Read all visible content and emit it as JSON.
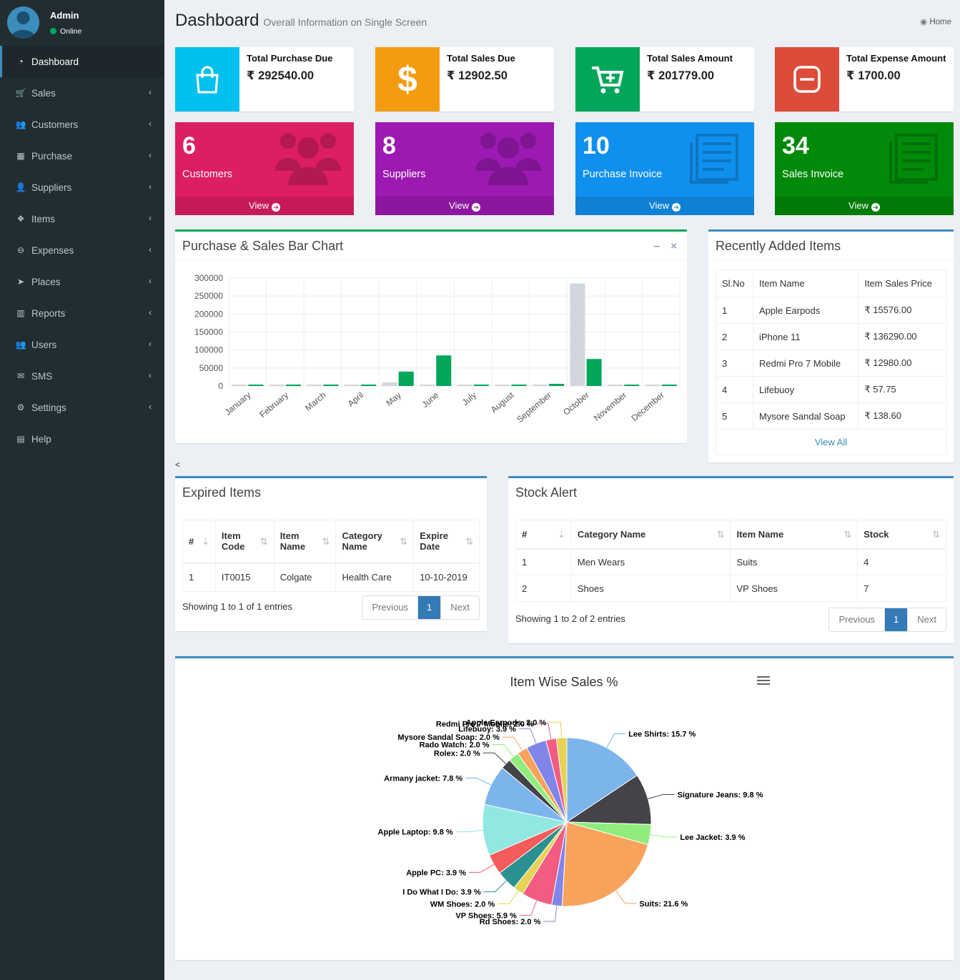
{
  "user": {
    "name": "Admin",
    "status": "Online"
  },
  "sidebar": {
    "items": [
      {
        "label": "Dashboard",
        "icon": "dashboard-icon"
      },
      {
        "label": "Sales",
        "icon": "cart-icon"
      },
      {
        "label": "Customers",
        "icon": "users-icon"
      },
      {
        "label": "Purchase",
        "icon": "grid-icon"
      },
      {
        "label": "Suppliers",
        "icon": "user-plus-icon"
      },
      {
        "label": "Items",
        "icon": "cubes-icon"
      },
      {
        "label": "Expenses",
        "icon": "minus-circle-icon"
      },
      {
        "label": "Places",
        "icon": "paper-plane-icon"
      },
      {
        "label": "Reports",
        "icon": "bar-chart-icon"
      },
      {
        "label": "Users",
        "icon": "users-icon"
      },
      {
        "label": "SMS",
        "icon": "envelope-icon"
      },
      {
        "label": "Settings",
        "icon": "cogs-icon"
      },
      {
        "label": "Help",
        "icon": "book-icon"
      }
    ]
  },
  "header": {
    "title": "Dashboard",
    "subtitle": "Overall Information on Single Screen",
    "home": "Home"
  },
  "info_boxes": [
    {
      "label": "Total Purchase Due",
      "value": "₹ 292540.00",
      "color": "#00c0ef",
      "icon": "shopping-bag-icon"
    },
    {
      "label": "Total Sales Due",
      "value": "₹ 12902.50",
      "color": "#f39c12",
      "icon": "dollar-icon"
    },
    {
      "label": "Total Sales Amount",
      "value": "₹ 201779.00",
      "color": "#00a65a",
      "icon": "cart-plus-icon"
    },
    {
      "label": "Total Expense Amount",
      "value": "₹ 1700.00",
      "color": "#dd4b39",
      "icon": "minus-square-icon"
    }
  ],
  "small_boxes": [
    {
      "count": "6",
      "label": "Customers",
      "link": "View",
      "color": "#dd1e63"
    },
    {
      "count": "8",
      "label": "Suppliers",
      "link": "View",
      "color": "#9c1ab1"
    },
    {
      "count": "10",
      "label": "Purchase Invoice",
      "link": "View",
      "color": "#1090ee"
    },
    {
      "count": "34",
      "label": "Sales Invoice",
      "link": "View",
      "color": "#018a0a"
    }
  ],
  "bar_chart_box": {
    "title": "Purchase & Sales Bar Chart",
    "stray": "<"
  },
  "chart_data": [
    {
      "type": "bar",
      "categories": [
        "January",
        "February",
        "March",
        "April",
        "May",
        "June",
        "July",
        "August",
        "September",
        "October",
        "November",
        "December"
      ],
      "series": [
        {
          "values": [
            0,
            0,
            0,
            0,
            10000,
            0,
            0,
            0,
            0,
            285000,
            0,
            0
          ],
          "color": "#d2d6de"
        },
        {
          "values": [
            0,
            0,
            0,
            0,
            40000,
            85000,
            0,
            0,
            6000,
            75000,
            0,
            0
          ],
          "color": "#00a65a"
        }
      ],
      "yticks": [
        0,
        50000,
        100000,
        150000,
        200000,
        250000,
        300000
      ],
      "ylim": [
        0,
        300000
      ],
      "grid": true
    },
    {
      "type": "pie",
      "title": "Item Wise Sales %",
      "slices": [
        {
          "label": "Lee Shirts",
          "value": 15.7,
          "color": "#7cb5ec"
        },
        {
          "label": "Signature Jeans",
          "value": 9.8,
          "color": "#434348"
        },
        {
          "label": "Lee Jacket",
          "value": 3.9,
          "color": "#90ed7d"
        },
        {
          "label": "Suits",
          "value": 21.6,
          "color": "#f7a35c"
        },
        {
          "label": "Rd Shoes",
          "value": 2.0,
          "color": "#8085e9"
        },
        {
          "label": "VP Shoes",
          "value": 5.9,
          "color": "#f15c80"
        },
        {
          "label": "WM Shoes",
          "value": 2.0,
          "color": "#e4d354"
        },
        {
          "label": "I Do What I Do",
          "value": 3.9,
          "color": "#2b908f"
        },
        {
          "label": "Apple PC",
          "value": 3.9,
          "color": "#f45b5b"
        },
        {
          "label": "Apple Laptop",
          "value": 9.8,
          "color": "#91e8e1"
        },
        {
          "label": "Armany jacket",
          "value": 7.8,
          "color": "#7cb5ec"
        },
        {
          "label": "Rolex",
          "value": 2.0,
          "color": "#434348"
        },
        {
          "label": "Rado Watch",
          "value": 2.0,
          "color": "#90ed7d"
        },
        {
          "label": "Mysore Sandal Soap",
          "value": 2.0,
          "color": "#f7a35c"
        },
        {
          "label": "Lifebuoy",
          "value": 3.9,
          "color": "#8085e9"
        },
        {
          "label": "Redmi Pro 7 Mobile",
          "value": 2.0,
          "color": "#f15c80"
        },
        {
          "label": "Apple Earpods",
          "value": 2.0,
          "color": "#e4d354"
        }
      ]
    }
  ],
  "recent_items": {
    "title": "Recently Added Items",
    "headers": [
      "Sl.No",
      "Item Name",
      "Item Sales Price"
    ],
    "rows": [
      [
        "1",
        "Apple Earpods",
        "₹ 15576.00"
      ],
      [
        "2",
        "iPhone 11",
        "₹ 136290.00"
      ],
      [
        "3",
        "Redmi Pro 7 Mobile",
        "₹ 12980.00"
      ],
      [
        "4",
        "Lifebuoy",
        "₹ 57.75"
      ],
      [
        "5",
        "Mysore Sandal Soap",
        "₹ 138.60"
      ]
    ],
    "view_all": "View All"
  },
  "expired": {
    "title": "Expired Items",
    "headers": [
      "#",
      "Item Code",
      "Item Name",
      "Category Name",
      "Expire Date"
    ],
    "rows": [
      [
        "1",
        "IT0015",
        "Colgate",
        "Health Care",
        "10-10-2019"
      ]
    ],
    "showing": "Showing 1 to 1 of 1 entries",
    "prev": "Previous",
    "page": "1",
    "next": "Next"
  },
  "stock": {
    "title": "Stock Alert",
    "headers": [
      "#",
      "Category Name",
      "Item Name",
      "Stock"
    ],
    "rows": [
      [
        "1",
        "Men Wears",
        "Suits",
        "4"
      ],
      [
        "2",
        "Shoes",
        "VP Shoes",
        "7"
      ]
    ],
    "showing": "Showing 1 to 2 of 2 entries",
    "prev": "Previous",
    "page": "1",
    "next": "Next"
  }
}
